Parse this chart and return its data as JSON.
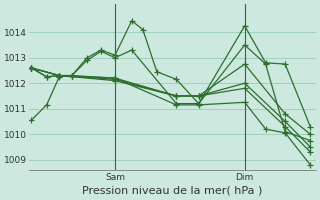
{
  "background_color": "#cce8df",
  "grid_color": "#99ccbb",
  "line_color": "#2d6e2d",
  "marker": "+",
  "marker_size": 4,
  "linewidth": 0.9,
  "ylabel_ticks": [
    1009,
    1010,
    1011,
    1012,
    1013,
    1014
  ],
  "ylim": [
    1008.6,
    1015.1
  ],
  "xlabel": "Pression niveau de la mer( hPa )",
  "xlabel_fontsize": 8,
  "tick_fontsize": 6.5,
  "vline_labels": [
    "Sam",
    "Dim"
  ],
  "vline_positions": [
    0.3,
    0.765
  ],
  "xlim": [
    -0.01,
    1.02
  ],
  "series": [
    [
      [
        0.0,
        1010.55
      ],
      [
        0.055,
        1011.15
      ],
      [
        0.1,
        1012.25
      ],
      [
        0.145,
        1012.3
      ],
      [
        0.3,
        1012.2
      ],
      [
        0.52,
        1011.15
      ],
      [
        0.6,
        1011.15
      ],
      [
        0.765,
        1011.25
      ],
      [
        0.84,
        1010.2
      ],
      [
        0.91,
        1010.05
      ],
      [
        1.0,
        1008.8
      ]
    ],
    [
      [
        0.0,
        1012.6
      ],
      [
        0.055,
        1012.25
      ],
      [
        0.1,
        1012.3
      ],
      [
        0.145,
        1012.3
      ],
      [
        0.2,
        1012.9
      ],
      [
        0.25,
        1013.25
      ],
      [
        0.3,
        1013.0
      ],
      [
        0.36,
        1013.3
      ],
      [
        0.52,
        1011.2
      ],
      [
        0.6,
        1011.2
      ],
      [
        0.765,
        1013.5
      ],
      [
        0.84,
        1012.75
      ],
      [
        0.91,
        1010.1
      ],
      [
        1.0,
        1009.75
      ]
    ],
    [
      [
        0.0,
        1012.6
      ],
      [
        0.055,
        1012.25
      ],
      [
        0.1,
        1012.3
      ],
      [
        0.145,
        1012.3
      ],
      [
        0.2,
        1013.0
      ],
      [
        0.25,
        1013.3
      ],
      [
        0.3,
        1013.1
      ],
      [
        0.36,
        1014.45
      ],
      [
        0.4,
        1014.1
      ],
      [
        0.45,
        1012.45
      ],
      [
        0.52,
        1012.15
      ],
      [
        0.6,
        1011.2
      ],
      [
        0.765,
        1014.25
      ],
      [
        0.84,
        1012.8
      ],
      [
        0.91,
        1012.75
      ],
      [
        1.0,
        1010.3
      ]
    ],
    [
      [
        0.0,
        1012.6
      ],
      [
        0.1,
        1012.3
      ],
      [
        0.3,
        1012.2
      ],
      [
        0.52,
        1011.5
      ],
      [
        0.6,
        1011.5
      ],
      [
        0.765,
        1012.75
      ],
      [
        0.91,
        1010.8
      ],
      [
        1.0,
        1010.0
      ]
    ],
    [
      [
        0.0,
        1012.6
      ],
      [
        0.1,
        1012.3
      ],
      [
        0.3,
        1012.15
      ],
      [
        0.52,
        1011.5
      ],
      [
        0.6,
        1011.5
      ],
      [
        0.765,
        1012.0
      ],
      [
        0.91,
        1010.5
      ],
      [
        1.0,
        1009.5
      ]
    ],
    [
      [
        0.0,
        1012.6
      ],
      [
        0.1,
        1012.3
      ],
      [
        0.3,
        1012.1
      ],
      [
        0.52,
        1011.5
      ],
      [
        0.6,
        1011.5
      ],
      [
        0.765,
        1011.8
      ],
      [
        0.91,
        1010.3
      ],
      [
        1.0,
        1009.3
      ]
    ]
  ]
}
